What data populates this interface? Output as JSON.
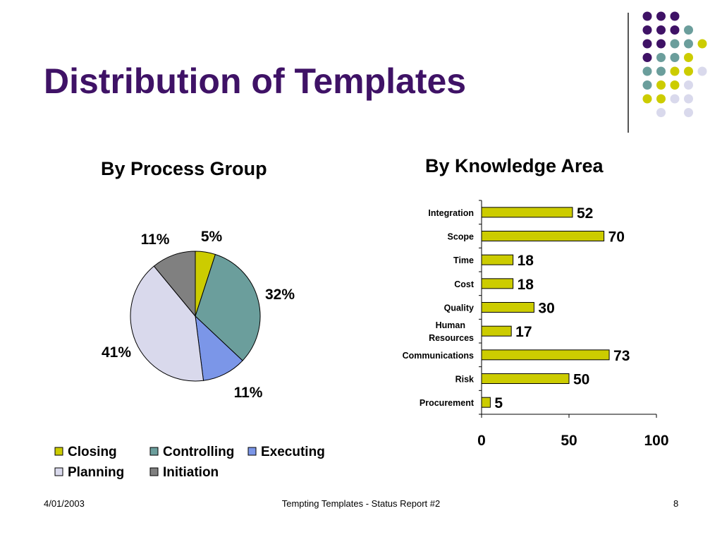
{
  "slide": {
    "title": "Distribution of Templates"
  },
  "footer": {
    "date": "4/01/2003",
    "center": "Tempting Templates - Status Report #2",
    "page": "8"
  },
  "decoration": {
    "dot_colors": {
      "purple": "#3f1266",
      "teal": "#6b9e9c",
      "yellow": "#cccc00",
      "lavender": "#d9d9ec"
    },
    "dot_grid": [
      [
        "purple",
        "purple",
        "purple",
        null,
        null
      ],
      [
        "purple",
        "purple",
        "purple",
        "teal",
        null
      ],
      [
        "purple",
        "purple",
        "teal",
        "teal",
        "yellow"
      ],
      [
        "purple",
        "teal",
        "teal",
        "yellow",
        null
      ],
      [
        "teal",
        "teal",
        "yellow",
        "yellow",
        "lavender"
      ],
      [
        "teal",
        "yellow",
        "yellow",
        "lavender",
        null
      ],
      [
        "yellow",
        "yellow",
        "lavender",
        "lavender",
        null
      ],
      [
        null,
        "lavender",
        null,
        "lavender",
        null
      ]
    ]
  },
  "chart_data": [
    {
      "type": "pie",
      "title": "By Process Group",
      "slices": [
        {
          "name": "Closing",
          "value": 5,
          "label": "5%",
          "color": "#cccc00"
        },
        {
          "name": "Controlling",
          "value": 32,
          "label": "32%",
          "color": "#6b9e9c"
        },
        {
          "name": "Executing",
          "value": 11,
          "label": "11%",
          "color": "#7b96e8"
        },
        {
          "name": "Planning",
          "value": 41,
          "label": "41%",
          "color": "#d9d9ec"
        },
        {
          "name": "Initiation",
          "value": 11,
          "label": "11%",
          "color": "#808080"
        }
      ],
      "legend": "bottom"
    },
    {
      "type": "bar",
      "orientation": "horizontal",
      "title": "By Knowledge Area",
      "categories": [
        "Integration",
        "Scope",
        "Time",
        "Cost",
        "Quality",
        "Human Resources",
        "Communications",
        "Risk",
        "Procurement"
      ],
      "values": [
        52,
        70,
        18,
        18,
        30,
        17,
        73,
        50,
        5
      ],
      "xlim": [
        0,
        100
      ],
      "xticks": [
        0,
        50,
        100
      ],
      "bar_color": "#cccc00",
      "grid": false
    }
  ]
}
